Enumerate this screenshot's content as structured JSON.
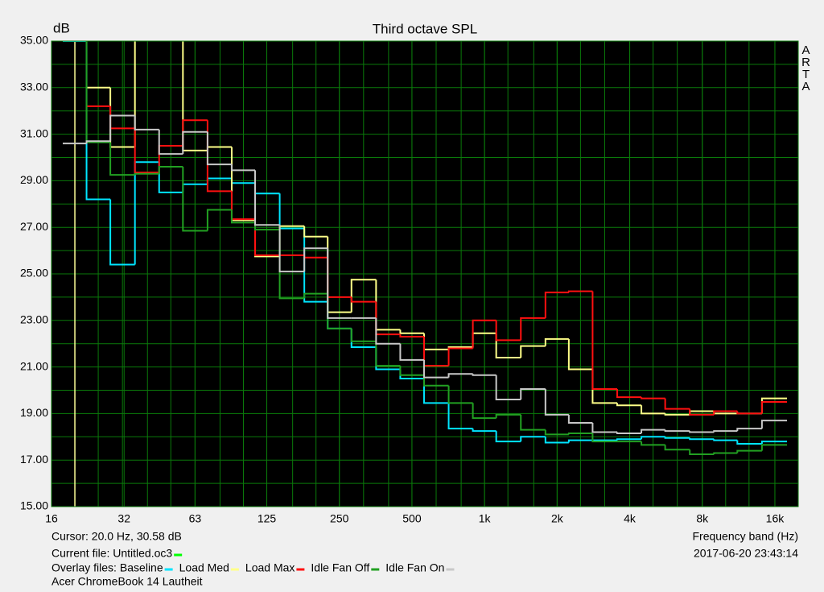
{
  "chart_data": {
    "type": "step",
    "title": "Third octave SPL",
    "y_unit": "dB",
    "brand": "ARTA",
    "x_label": "Frequency band (Hz)",
    "xlog": true,
    "xlim": [
      16,
      20000
    ],
    "xticks": [
      16,
      32,
      63,
      125,
      250,
      500,
      {
        "value": 1000,
        "label": "1k"
      },
      {
        "value": 2000,
        "label": "2k"
      },
      {
        "value": 4000,
        "label": "4k"
      },
      {
        "value": 8000,
        "label": "8k"
      },
      {
        "value": 16000,
        "label": "16k"
      }
    ],
    "ylim": [
      15,
      35
    ],
    "yticks": [
      {
        "value": 15,
        "label": "15.00"
      },
      {
        "value": 17,
        "label": "17.00"
      },
      {
        "value": 19,
        "label": "19.00"
      },
      {
        "value": 21,
        "label": "21.00"
      },
      {
        "value": 23,
        "label": "23.00"
      },
      {
        "value": 25,
        "label": "25.00"
      },
      {
        "value": 27,
        "label": "27.00"
      },
      {
        "value": 29,
        "label": "29.00"
      },
      {
        "value": 31,
        "label": "31.00"
      },
      {
        "value": 33,
        "label": "33.00"
      },
      {
        "value": 35,
        "label": "35.00"
      }
    ],
    "grid": true,
    "cursor": {
      "label": "Cursor:    20.0 Hz, 30.58 dB",
      "x": 20,
      "color": "#ffff99"
    },
    "current_file": {
      "label": "Current file: Untitled.oc3",
      "color": "#00ff00"
    },
    "timestamp": "2017-06-20  23:43:14",
    "overlay_label": "Overlay files:",
    "footer": "Acer ChromeBook 14 Lautheit",
    "x": [
      20,
      25,
      31.5,
      40,
      50,
      63,
      80,
      100,
      125,
      160,
      200,
      250,
      315,
      400,
      500,
      630,
      800,
      1000,
      1250,
      1600,
      2000,
      2500,
      3150,
      4000,
      5000,
      6300,
      8000,
      10000,
      12500,
      16000
    ],
    "series": [
      {
        "name": "Baseline",
        "color": "#00e5ff",
        "values": [
          35,
          28.2,
          25.4,
          29.8,
          28.5,
          28.85,
          29.1,
          28.9,
          28.45,
          26.95,
          23.8,
          22.65,
          21.85,
          20.9,
          20.5,
          19.45,
          18.35,
          18.25,
          17.8,
          18.0,
          17.75,
          17.85,
          17.85,
          17.9,
          18.0,
          17.95,
          17.9,
          17.85,
          17.7,
          17.8
        ]
      },
      {
        "name": "Load Med",
        "color": "#ffff88",
        "values": [
          null,
          33.0,
          30.45,
          36,
          36,
          30.3,
          30.45,
          27.3,
          25.75,
          27.05,
          26.6,
          23.35,
          24.75,
          22.6,
          22.45,
          21.75,
          21.85,
          22.45,
          21.4,
          21.9,
          22.2,
          20.9,
          19.45,
          19.35,
          19.0,
          18.95,
          19.1,
          19.0,
          19.0,
          19.65
        ]
      },
      {
        "name": "Load Max",
        "color": "#ff1010",
        "values": [
          null,
          32.2,
          31.25,
          29.35,
          30.5,
          31.6,
          28.55,
          27.35,
          25.8,
          25.8,
          25.7,
          24.0,
          23.8,
          22.4,
          22.3,
          21.05,
          21.8,
          23.0,
          22.15,
          23.1,
          24.2,
          24.25,
          20.05,
          19.7,
          19.65,
          19.2,
          18.95,
          19.1,
          19.0,
          19.5
        ]
      },
      {
        "name": "Idle Fan Off",
        "color": "#22a022",
        "values": [
          35.5,
          30.65,
          29.25,
          29.3,
          29.6,
          26.85,
          27.75,
          27.2,
          26.9,
          23.95,
          24.15,
          22.65,
          22.1,
          21.05,
          20.65,
          20.2,
          19.45,
          18.8,
          18.95,
          18.3,
          18.1,
          18.15,
          17.8,
          17.8,
          17.65,
          17.45,
          17.25,
          17.3,
          17.4,
          17.65
        ]
      },
      {
        "name": "Idle Fan On",
        "color": "#c8c8c8",
        "values": [
          30.6,
          30.7,
          31.8,
          31.2,
          30.15,
          31.1,
          29.7,
          29.45,
          27.1,
          25.1,
          26.1,
          23.1,
          23.1,
          22.0,
          21.3,
          20.55,
          20.7,
          20.65,
          19.6,
          20.05,
          18.95,
          18.6,
          18.2,
          18.15,
          18.3,
          18.25,
          18.2,
          18.25,
          18.35,
          18.7
        ]
      }
    ]
  }
}
